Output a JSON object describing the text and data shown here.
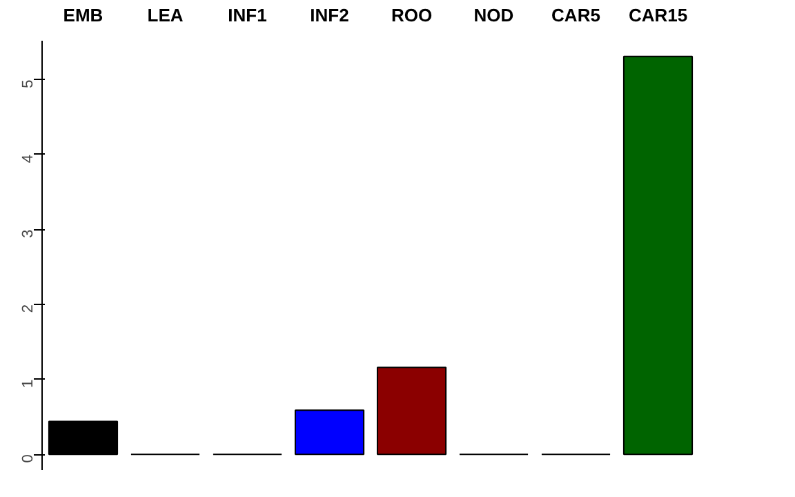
{
  "chart_data": {
    "type": "bar",
    "categories": [
      "EMB",
      "LEA",
      "INF1",
      "INF2",
      "ROO",
      "NOD",
      "CAR5",
      "CAR15"
    ],
    "values": [
      0.44,
      0,
      0,
      0.59,
      1.16,
      0,
      0,
      5.31
    ],
    "colors": [
      "#000000",
      "#000000",
      "#000000",
      "#0000ff",
      "#8b0000",
      "#000000",
      "#000000",
      "#006400"
    ],
    "ylim": [
      -0.21,
      5.52
    ],
    "yticks": [
      0,
      1,
      2,
      3,
      4,
      5
    ],
    "grid": false
  }
}
